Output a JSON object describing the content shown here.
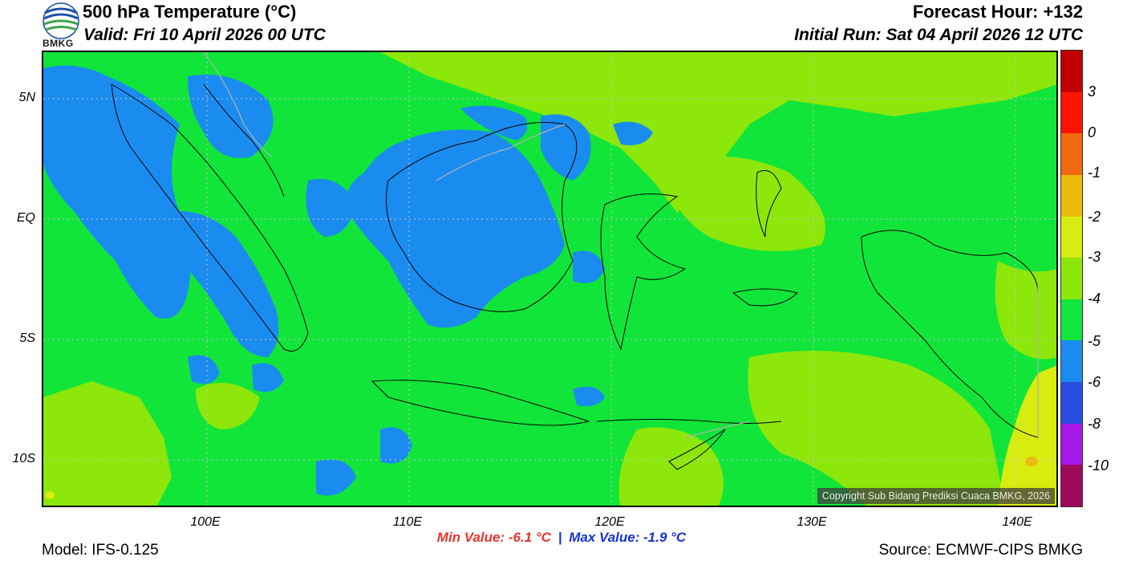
{
  "header": {
    "title": "500 hPa Temperature (°C)",
    "valid": "Valid: Fri 10 April 2026 00 UTC",
    "forecast_hour": "Forecast Hour: +132",
    "initial_run": "Initial Run: Sat 04 April 2026 12 UTC",
    "logo_text": "BMKG"
  },
  "axes": {
    "y_ticks": [
      "5N",
      "EQ",
      "5S",
      "10S"
    ],
    "x_ticks": [
      "100E",
      "110E",
      "120E",
      "130E",
      "140E"
    ]
  },
  "colorbar": {
    "labels": [
      "3",
      "0",
      "-1",
      "-2",
      "-3",
      "-4",
      "-5",
      "-6",
      "-8",
      "-10"
    ],
    "colors": [
      "#c00000",
      "#ff1400",
      "#f06a10",
      "#ebba0c",
      "#d9ec10",
      "#8de70a",
      "#10e63c",
      "#1a8cf0",
      "#2a4ee0",
      "#a617ea",
      "#9e0a5a"
    ]
  },
  "map_colors": {
    "base": "#11e53a",
    "cool": "#1a8cf0",
    "mild": "#8de70a",
    "warm": "#d9ec10",
    "coast": "#000000",
    "border_grey": "#b0b0b0"
  },
  "copyright": "Copyright Sub Bidang Prediksi Cuaca BMKG, 2026",
  "stats": {
    "min": "Min Value: -6.1 °C",
    "separator": "|",
    "max": "Max Value: -1.9 °C"
  },
  "footer": {
    "model": "Model: IFS-0.125",
    "source": "Source: ECMWF-CIPS BMKG"
  }
}
